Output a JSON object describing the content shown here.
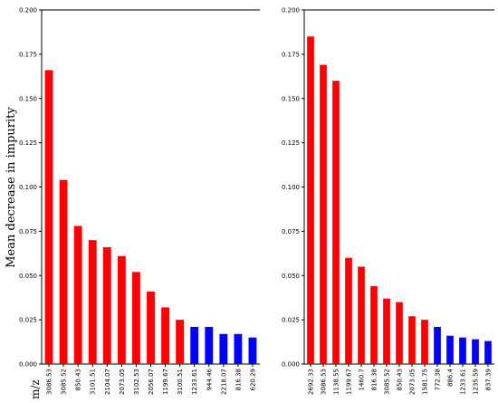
{
  "figure": {
    "ylabel": "Mean decrease in impurity",
    "xlabel": "m/z"
  },
  "colors": {
    "red": "#ff0000",
    "blue": "#0000ff"
  },
  "chart_data": [
    {
      "type": "bar",
      "categories": [
        "3086.53",
        "3085.52",
        "850.43",
        "3101.51",
        "2104.07",
        "2073.05",
        "3102.53",
        "2056.07",
        "1199.67",
        "3100.51",
        "1233.61",
        "944.46",
        "2218.07",
        "816.38",
        "620.29"
      ],
      "values": [
        0.166,
        0.104,
        0.078,
        0.07,
        0.066,
        0.061,
        0.052,
        0.041,
        0.032,
        0.025,
        0.021,
        0.021,
        0.017,
        0.017,
        0.015
      ],
      "bar_colors": [
        "red",
        "red",
        "red",
        "red",
        "red",
        "red",
        "red",
        "red",
        "red",
        "red",
        "blue",
        "blue",
        "blue",
        "blue",
        "blue"
      ],
      "ylim": [
        0,
        0.2
      ],
      "yticks": [
        "0.000",
        "0.025",
        "0.050",
        "0.075",
        "0.100",
        "0.125",
        "0.150",
        "0.175",
        "0.200"
      ]
    },
    {
      "type": "bar",
      "categories": [
        "2692.33",
        "3086.53",
        "1138.55",
        "1199.67",
        "1460.7",
        "816.38",
        "3085.52",
        "850.43",
        "2073.05",
        "1581.75",
        "772.38",
        "886.4",
        "1233.61",
        "1235.59",
        "837.39"
      ],
      "values": [
        0.185,
        0.169,
        0.16,
        0.06,
        0.055,
        0.044,
        0.037,
        0.035,
        0.027,
        0.025,
        0.021,
        0.016,
        0.015,
        0.014,
        0.013
      ],
      "bar_colors": [
        "red",
        "red",
        "red",
        "red",
        "red",
        "red",
        "red",
        "red",
        "red",
        "red",
        "blue",
        "blue",
        "blue",
        "blue",
        "blue"
      ],
      "ylim": [
        0,
        0.2
      ],
      "yticks": [
        "0.000",
        "0.025",
        "0.050",
        "0.075",
        "0.100",
        "0.125",
        "0.150",
        "0.175",
        "0.200"
      ]
    }
  ]
}
